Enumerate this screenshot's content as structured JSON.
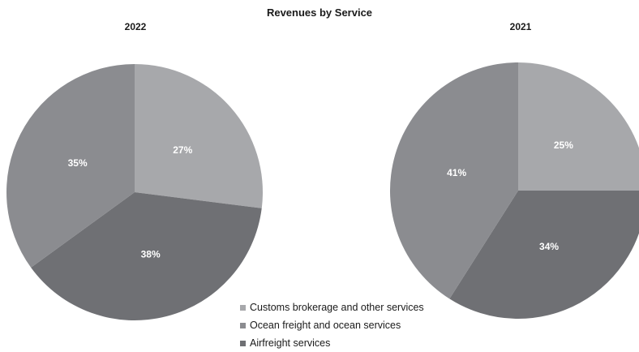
{
  "chart_data": [
    {
      "type": "pie",
      "title": "2022",
      "categories": [
        "Customs brokerage and other services",
        "Airfreight services",
        "Ocean freight and ocean services"
      ],
      "values": [
        27,
        38,
        35
      ],
      "labels": [
        "27%",
        "38%",
        "35%"
      ]
    },
    {
      "type": "pie",
      "title": "2021",
      "categories": [
        "Customs brokerage and other services",
        "Airfreight services",
        "Ocean freight and ocean services"
      ],
      "values": [
        25,
        34,
        41
      ],
      "labels": [
        "25%",
        "34%",
        "41%"
      ]
    }
  ],
  "figure": {
    "title": "Revenues by Service"
  },
  "legend": {
    "items": [
      {
        "label": "Customs brokerage and other services",
        "color": "#a7a8ab"
      },
      {
        "label": "Ocean freight and ocean services",
        "color": "#8b8c90"
      },
      {
        "label": "Airfreight services",
        "color": "#6f7074"
      }
    ]
  },
  "colors": {
    "Customs brokerage and other services": "#a7a8ab",
    "Ocean freight and ocean services": "#8b8c90",
    "Airfreight services": "#6f7074",
    "label_text": "#ffffff"
  }
}
